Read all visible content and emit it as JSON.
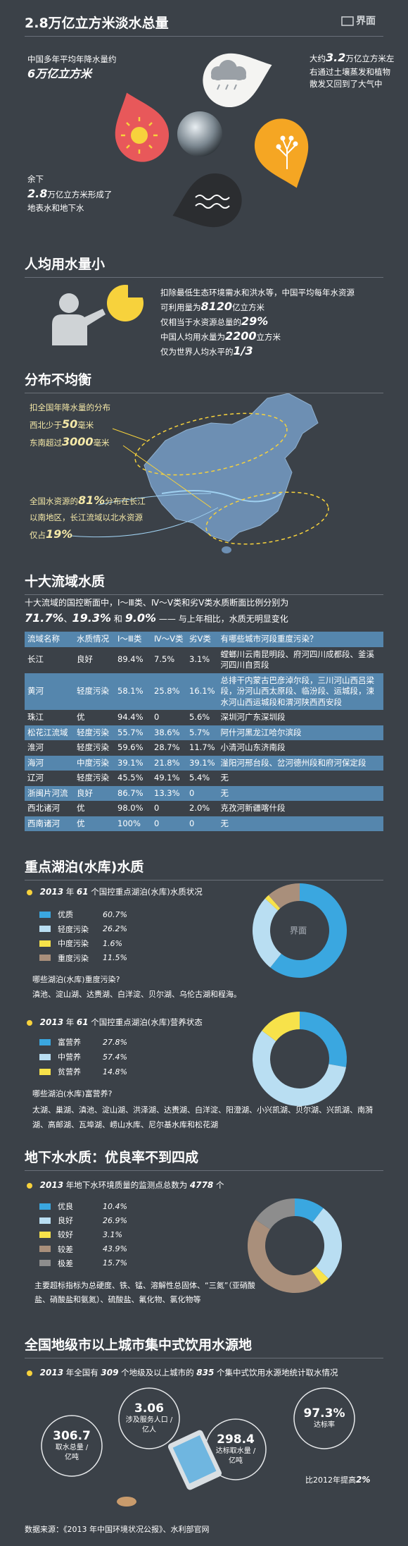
{
  "logo": "界面",
  "total": {
    "title": "2.8万亿立方米淡水总量",
    "rain": [
      "中国多年平均年降水量约",
      "6万亿立方米"
    ],
    "evaporation": [
      "大约",
      "3.2",
      "万亿立方米左右通过土壤蒸发和植物散发又回到了大气中"
    ],
    "remainder": [
      "余下",
      "2.8",
      "万亿立方米形成了",
      "地表水和地下水"
    ]
  },
  "per_capita": {
    "title": "人均用水量小",
    "lines": [
      [
        "扣除最低生态环境需水和洪水等，中国平均每年水资源"
      ],
      [
        "可利用量为",
        "8120",
        "亿立方米"
      ],
      [
        "仅相当于水资源总量的",
        "29%"
      ],
      [
        "中国人均用水量为",
        "2200",
        "立方米"
      ],
      [
        "仅为世界人均水平的",
        "1/3"
      ]
    ]
  },
  "distribution": {
    "title": "分布不均衡",
    "rainfall": [
      [
        "扣全国年降水量的分布"
      ],
      [
        "西北少于",
        "50",
        "毫米"
      ],
      [
        "东南超过",
        "3000",
        "毫米"
      ]
    ],
    "resources": [
      [
        "全国水资源的",
        "81%",
        "分布在长江"
      ],
      [
        "以南地区，长江流域以北水资源"
      ],
      [
        "仅占",
        "19%"
      ]
    ]
  },
  "basins": {
    "title": "十大流域水质",
    "intro": [
      [
        "十大流域的国控断面中，Ⅰ～Ⅲ类、Ⅳ～Ⅴ类和劣Ⅴ类水质断面比例分别为"
      ],
      [
        "71.7%",
        "、",
        "19.3%",
        " 和 ",
        "9.0%",
        " —— 与上年相比，水质无明显变化"
      ]
    ],
    "table": {
      "header": [
        "流域名称",
        "水质情况",
        "Ⅰ～Ⅲ类",
        "Ⅳ～Ⅴ类",
        "劣Ⅴ类",
        "有哪些城市河段重度污染？"
      ],
      "rows": [
        [
          "长江",
          "良好",
          "89.4%",
          "7.5%",
          "3.1%",
          "螳螂川云南昆明段、府河四川成都段、釜溪河四川自贡段"
        ],
        [
          "黄河",
          "轻度污染",
          "58.1%",
          "25.8%",
          "16.1%",
          "总排干内蒙古巴彦淖尔段，三川河山西吕梁段，汾河山西太原段、临汾段、运城段，涑水河山西运城段和渭河陕西西安段"
        ],
        [
          "珠江",
          "优",
          "94.4%",
          "0",
          "5.6%",
          "深圳河广东深圳段"
        ],
        [
          "松花江流域",
          "轻度污染",
          "55.7%",
          "38.6%",
          "5.7%",
          "阿什河黑龙江哈尔滨段"
        ],
        [
          "淮河",
          "轻度污染",
          "59.6%",
          "28.7%",
          "11.7%",
          "小清河山东济南段"
        ],
        [
          "海河",
          "中度污染",
          "39.1%",
          "21.8%",
          "39.1%",
          "滏阳河邢台段、岔河德州段和府河保定段"
        ],
        [
          "辽河",
          "轻度污染",
          "45.5%",
          "49.1%",
          "5.4%",
          "无"
        ],
        [
          "浙闽片河流",
          "良好",
          "86.7%",
          "13.3%",
          "0",
          "无"
        ],
        [
          "西北诸河",
          "优",
          "98.0%",
          "0",
          "2.0%",
          "克孜河新疆喀什段"
        ],
        [
          "西南诸河",
          "优",
          "100%",
          "0",
          "0",
          "无"
        ]
      ]
    }
  },
  "lakes": {
    "title": "重点湖泊(水库)水质",
    "quality_heading": [
      "2013",
      "年",
      "61",
      "个国控重点湖泊(水库)水质状况"
    ],
    "quality_question": "哪些湖泊(水库)重度污染?",
    "quality_answer": "滇池、淀山湖、达赉湖、白洋淀、贝尔湖、乌伦古湖和程海。",
    "nutrition_heading": [
      "2013",
      "年",
      "61",
      "个国控重点湖泊(水库)营养状态"
    ],
    "nutrition_question": "哪些湖泊(水库)富营养?",
    "nutrition_answer": "太湖、巢湖、滇池、淀山湖、洪泽湖、达赉湖、白洋淀、阳澄湖、小兴凯湖、贝尔湖、兴凯湖、南漪湖、高邮湖、瓦埠湖、崂山水库、尼尔基水库和松花湖"
  },
  "groundwater": {
    "title": "地下水水质：优良率不到四成",
    "heading": [
      "2013",
      "年地下水环境质量的监测点总数为",
      "4778",
      "个"
    ],
    "note": "主要超标指标为总硬度、铁、锰、溶解性总固体、“三氮”（亚硝酸盐、硝酸盐和氨氮）、硫酸盐、氟化物、氯化物等"
  },
  "drinking": {
    "title": "全国地级市以上城市集中式饮用水源地",
    "heading": [
      "2013",
      "年全国有",
      "309",
      "个地级及以上城市的",
      "835",
      "个集中式饮用水源地统计取水情况"
    ],
    "stats": [
      {
        "value": "306.7",
        "label": [
          "取水总量 /",
          "亿吨"
        ]
      },
      {
        "value": "3.06",
        "label": [
          "涉及服务人口 /",
          "亿人"
        ]
      },
      {
        "value": "298.4",
        "label": [
          "达标取水量 /",
          "亿吨"
        ]
      },
      {
        "value": "97.3%",
        "label": [
          "达标率"
        ]
      }
    ],
    "note": [
      "比2012年提高",
      "2%"
    ]
  },
  "source": "数据来源：《2013 年中国环境状况公报》、水利部官网",
  "chart_data": [
    {
      "type": "pie",
      "categories": [
        "优质",
        "轻度污染",
        "中度污染",
        "重度污染"
      ],
      "values": [
        60.7,
        26.2,
        1.6,
        11.5
      ],
      "value_labels": [
        "60.7%",
        "26.2%",
        "1.6%",
        "11.5%"
      ],
      "colors": [
        "#3aa7e0",
        "#b9def2",
        "#f7e24a",
        "#a98f7b"
      ]
    },
    {
      "type": "pie",
      "categories": [
        "富营养",
        "中营养",
        "贫营养"
      ],
      "values": [
        27.8,
        57.4,
        14.8
      ],
      "value_labels": [
        "27.8%",
        "57.4%",
        "14.8%"
      ],
      "colors": [
        "#3aa7e0",
        "#b9def2",
        "#f7e24a"
      ]
    },
    {
      "type": "pie",
      "categories": [
        "优良",
        "良好",
        "较好",
        "较差",
        "极差"
      ],
      "values": [
        10.4,
        26.9,
        3.1,
        43.9,
        15.7
      ],
      "value_labels": [
        "10.4%",
        "26.9%",
        "3.1%",
        "43.9%",
        "15.7%"
      ],
      "colors": [
        "#3aa7e0",
        "#b9def2",
        "#f7e24a",
        "#a98f7b",
        "#8d8d8d"
      ]
    }
  ]
}
